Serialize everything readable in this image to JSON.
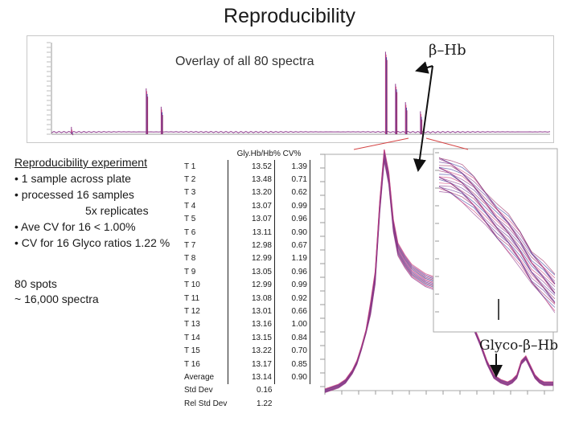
{
  "slide": {
    "title": "Reproducibility",
    "overlay_caption": "Overlay of all 80 spectra",
    "beta_hb_label": "β–Hb",
    "glyco_label": "Glyco-β–Hb",
    "notes": {
      "heading": "Reproducibility experiment",
      "line1": "• 1 sample across plate",
      "line2": "• processed 16 samples",
      "line3": "5x replicates",
      "line4": "• Ave CV for 16 < 1.00%",
      "line5": "• CV for 16 Glyco ratios 1.22 %"
    },
    "spots": {
      "line1": "80 spots",
      "line2": "~ 16,000 spectra"
    }
  },
  "colors": {
    "spectra_purple": "#8e3a8e",
    "spectra_pink": "#d0407a",
    "spectra_blue": "#4040a0",
    "arrow": "#111111",
    "zoom_line": "#d44444"
  },
  "chart_data": [
    {
      "type": "table",
      "title": "Gly/Hb% and CV%",
      "columns": [
        "",
        "Gly.Hb/Hb%",
        "CV%"
      ],
      "rows": [
        [
          "T 1",
          "13.52",
          "1.39"
        ],
        [
          "T 2",
          "13.48",
          "0.71"
        ],
        [
          "T 3",
          "13.20",
          "0.62"
        ],
        [
          "T 4",
          "13.07",
          "0.99"
        ],
        [
          "T 5",
          "13.07",
          "0.96"
        ],
        [
          "T 6",
          "13.11",
          "0.90"
        ],
        [
          "T 7",
          "12.98",
          "0.67"
        ],
        [
          "T 8",
          "12.99",
          "1.19"
        ],
        [
          "T 9",
          "13.05",
          "0.96"
        ],
        [
          "T 10",
          "12.99",
          "0.99"
        ],
        [
          "T 11",
          "13.08",
          "0.92"
        ],
        [
          "T 12",
          "13.01",
          "0.66"
        ],
        [
          "T 13",
          "13.16",
          "1.00"
        ],
        [
          "T 14",
          "13.15",
          "0.84"
        ],
        [
          "T 15",
          "13.22",
          "0.70"
        ],
        [
          "T 16",
          "13.17",
          "0.85"
        ],
        [
          "Average",
          "13.14",
          "0.90"
        ],
        [
          "Std Dev",
          "0.16",
          ""
        ],
        [
          "Rel Std Dev",
          "1.22",
          ""
        ]
      ]
    },
    {
      "type": "line",
      "title": "Overlay of all 80 spectra",
      "xlim": [
        0,
        100
      ],
      "ylim": [
        0,
        100
      ],
      "peaks": [
        {
          "x": 4,
          "y": 8
        },
        {
          "x": 19,
          "y": 50
        },
        {
          "x": 22,
          "y": 30
        },
        {
          "x": 67,
          "y": 90
        },
        {
          "x": 69,
          "y": 55
        },
        {
          "x": 71,
          "y": 35
        },
        {
          "x": 74,
          "y": 25
        }
      ]
    },
    {
      "type": "line",
      "title": "Zoomed β-Hb and Glyco-β-Hb region",
      "xlim": [
        0,
        100
      ],
      "ylim": [
        0,
        100
      ],
      "x": [
        0,
        3,
        6,
        9,
        12,
        14,
        16,
        18,
        20,
        22,
        24,
        26,
        28,
        30,
        32,
        35,
        38,
        41,
        44,
        47,
        50,
        53,
        56,
        59,
        62,
        65,
        68,
        71,
        74,
        77,
        80,
        82,
        84,
        86,
        88,
        90,
        92,
        94,
        96,
        98,
        100
      ],
      "values": [
        0,
        1,
        2,
        4,
        8,
        12,
        18,
        25,
        35,
        48,
        78,
        100,
        90,
        70,
        60,
        55,
        51,
        49,
        47,
        46,
        44,
        41,
        38,
        35,
        32,
        27,
        20,
        12,
        6,
        4,
        3,
        4,
        6,
        12,
        14,
        10,
        6,
        4,
        3,
        3,
        3
      ]
    },
    {
      "type": "line",
      "title": "Inset zoom of β-Hb peak apex",
      "xlim": [
        0,
        100
      ],
      "ylim": [
        0,
        100
      ],
      "x": [
        0,
        10,
        20,
        30,
        40,
        50,
        60,
        70,
        80,
        90,
        100
      ],
      "values": [
        100,
        98,
        94,
        88,
        80,
        72,
        65,
        56,
        45,
        38,
        30
      ]
    }
  ]
}
